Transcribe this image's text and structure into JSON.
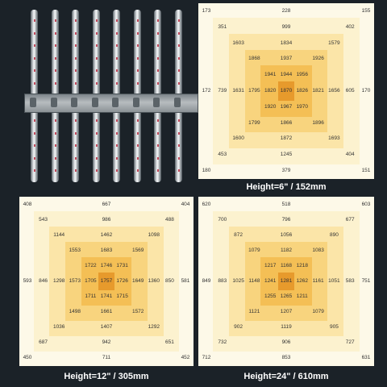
{
  "colors": {
    "background": "#1b2228",
    "panel": "#fdf9e8",
    "rings": [
      "#fcf2cf",
      "#fbe5a8",
      "#f8d47e",
      "#f4bf55",
      "#e79a2c"
    ]
  },
  "fixture": {
    "bars": 8,
    "icon": "led-light-bar-fixture-photo"
  },
  "panels": [
    {
      "caption": "Height=6\" / 152mm",
      "rows": [
        [
          "173",
          "",
          "",
          "",
          "",
          "228",
          "",
          "",
          "",
          "",
          "155"
        ],
        [
          "",
          "351",
          "",
          "",
          "",
          "999",
          "",
          "",
          "",
          "402",
          ""
        ],
        [
          "",
          "",
          "1603",
          "",
          "",
          "1834",
          "",
          "",
          "1579",
          "",
          ""
        ],
        [
          "",
          "",
          "",
          "1868",
          "",
          "1937",
          "",
          "1926",
          "",
          "",
          ""
        ],
        [
          "",
          "",
          "",
          "",
          "1941",
          "1944",
          "1956",
          "",
          "",
          "",
          ""
        ],
        [
          "172",
          "739",
          "1631",
          "1795",
          "1820",
          "1870",
          "1826",
          "1821",
          "1656",
          "605",
          "170"
        ],
        [
          "",
          "",
          "",
          "",
          "1920",
          "1967",
          "1970",
          "",
          "",
          "",
          ""
        ],
        [
          "",
          "",
          "",
          "1799",
          "",
          "1866",
          "",
          "1896",
          "",
          "",
          ""
        ],
        [
          "",
          "",
          "1600",
          "",
          "",
          "1872",
          "",
          "",
          "1693",
          "",
          ""
        ],
        [
          "",
          "453",
          "",
          "",
          "",
          "1245",
          "",
          "",
          "",
          "404",
          ""
        ],
        [
          "180",
          "",
          "",
          "",
          "",
          "379",
          "",
          "",
          "",
          "",
          "151"
        ]
      ]
    },
    {
      "caption": "Height=12\" / 305mm",
      "rows": [
        [
          "408",
          "",
          "",
          "",
          "",
          "667",
          "",
          "",
          "",
          "",
          "404"
        ],
        [
          "",
          "543",
          "",
          "",
          "",
          "986",
          "",
          "",
          "",
          "488",
          ""
        ],
        [
          "",
          "",
          "1144",
          "",
          "",
          "1462",
          "",
          "",
          "1098",
          "",
          ""
        ],
        [
          "",
          "",
          "",
          "1553",
          "",
          "1683",
          "",
          "1569",
          "",
          "",
          ""
        ],
        [
          "",
          "",
          "",
          "",
          "1722",
          "1746",
          "1731",
          "",
          "",
          "",
          ""
        ],
        [
          "593",
          "846",
          "1298",
          "1573",
          "1705",
          "1757",
          "1726",
          "1649",
          "1360",
          "850",
          "581"
        ],
        [
          "",
          "",
          "",
          "",
          "1711",
          "1741",
          "1715",
          "",
          "",
          "",
          ""
        ],
        [
          "",
          "",
          "",
          "1498",
          "",
          "1661",
          "",
          "1572",
          "",
          "",
          ""
        ],
        [
          "",
          "",
          "1036",
          "",
          "",
          "1407",
          "",
          "",
          "1292",
          "",
          ""
        ],
        [
          "",
          "687",
          "",
          "",
          "",
          "942",
          "",
          "",
          "",
          "651",
          ""
        ],
        [
          "450",
          "",
          "",
          "",
          "",
          "711",
          "",
          "",
          "",
          "",
          "452"
        ]
      ]
    },
    {
      "caption": "Height=24\" / 610mm",
      "rows": [
        [
          "620",
          "",
          "",
          "",
          "",
          "518",
          "",
          "",
          "",
          "",
          "603"
        ],
        [
          "",
          "700",
          "",
          "",
          "",
          "796",
          "",
          "",
          "",
          "677",
          ""
        ],
        [
          "",
          "",
          "872",
          "",
          "",
          "1056",
          "",
          "",
          "890",
          "",
          ""
        ],
        [
          "",
          "",
          "",
          "1079",
          "",
          "1182",
          "",
          "1083",
          "",
          "",
          ""
        ],
        [
          "",
          "",
          "",
          "",
          "1217",
          "1168",
          "1218",
          "",
          "",
          "",
          ""
        ],
        [
          "849",
          "883",
          "1025",
          "1148",
          "1241",
          "1281",
          "1262",
          "1161",
          "1051",
          "583",
          "751"
        ],
        [
          "",
          "",
          "",
          "",
          "1255",
          "1265",
          "1211",
          "",
          "",
          "",
          ""
        ],
        [
          "",
          "",
          "",
          "1121",
          "",
          "1207",
          "",
          "1079",
          "",
          "",
          ""
        ],
        [
          "",
          "",
          "902",
          "",
          "",
          "1119",
          "",
          "",
          "905",
          "",
          ""
        ],
        [
          "",
          "732",
          "",
          "",
          "",
          "906",
          "",
          "",
          "",
          "727",
          ""
        ],
        [
          "712",
          "",
          "",
          "",
          "",
          "853",
          "",
          "",
          "",
          "",
          "631"
        ]
      ]
    }
  ]
}
